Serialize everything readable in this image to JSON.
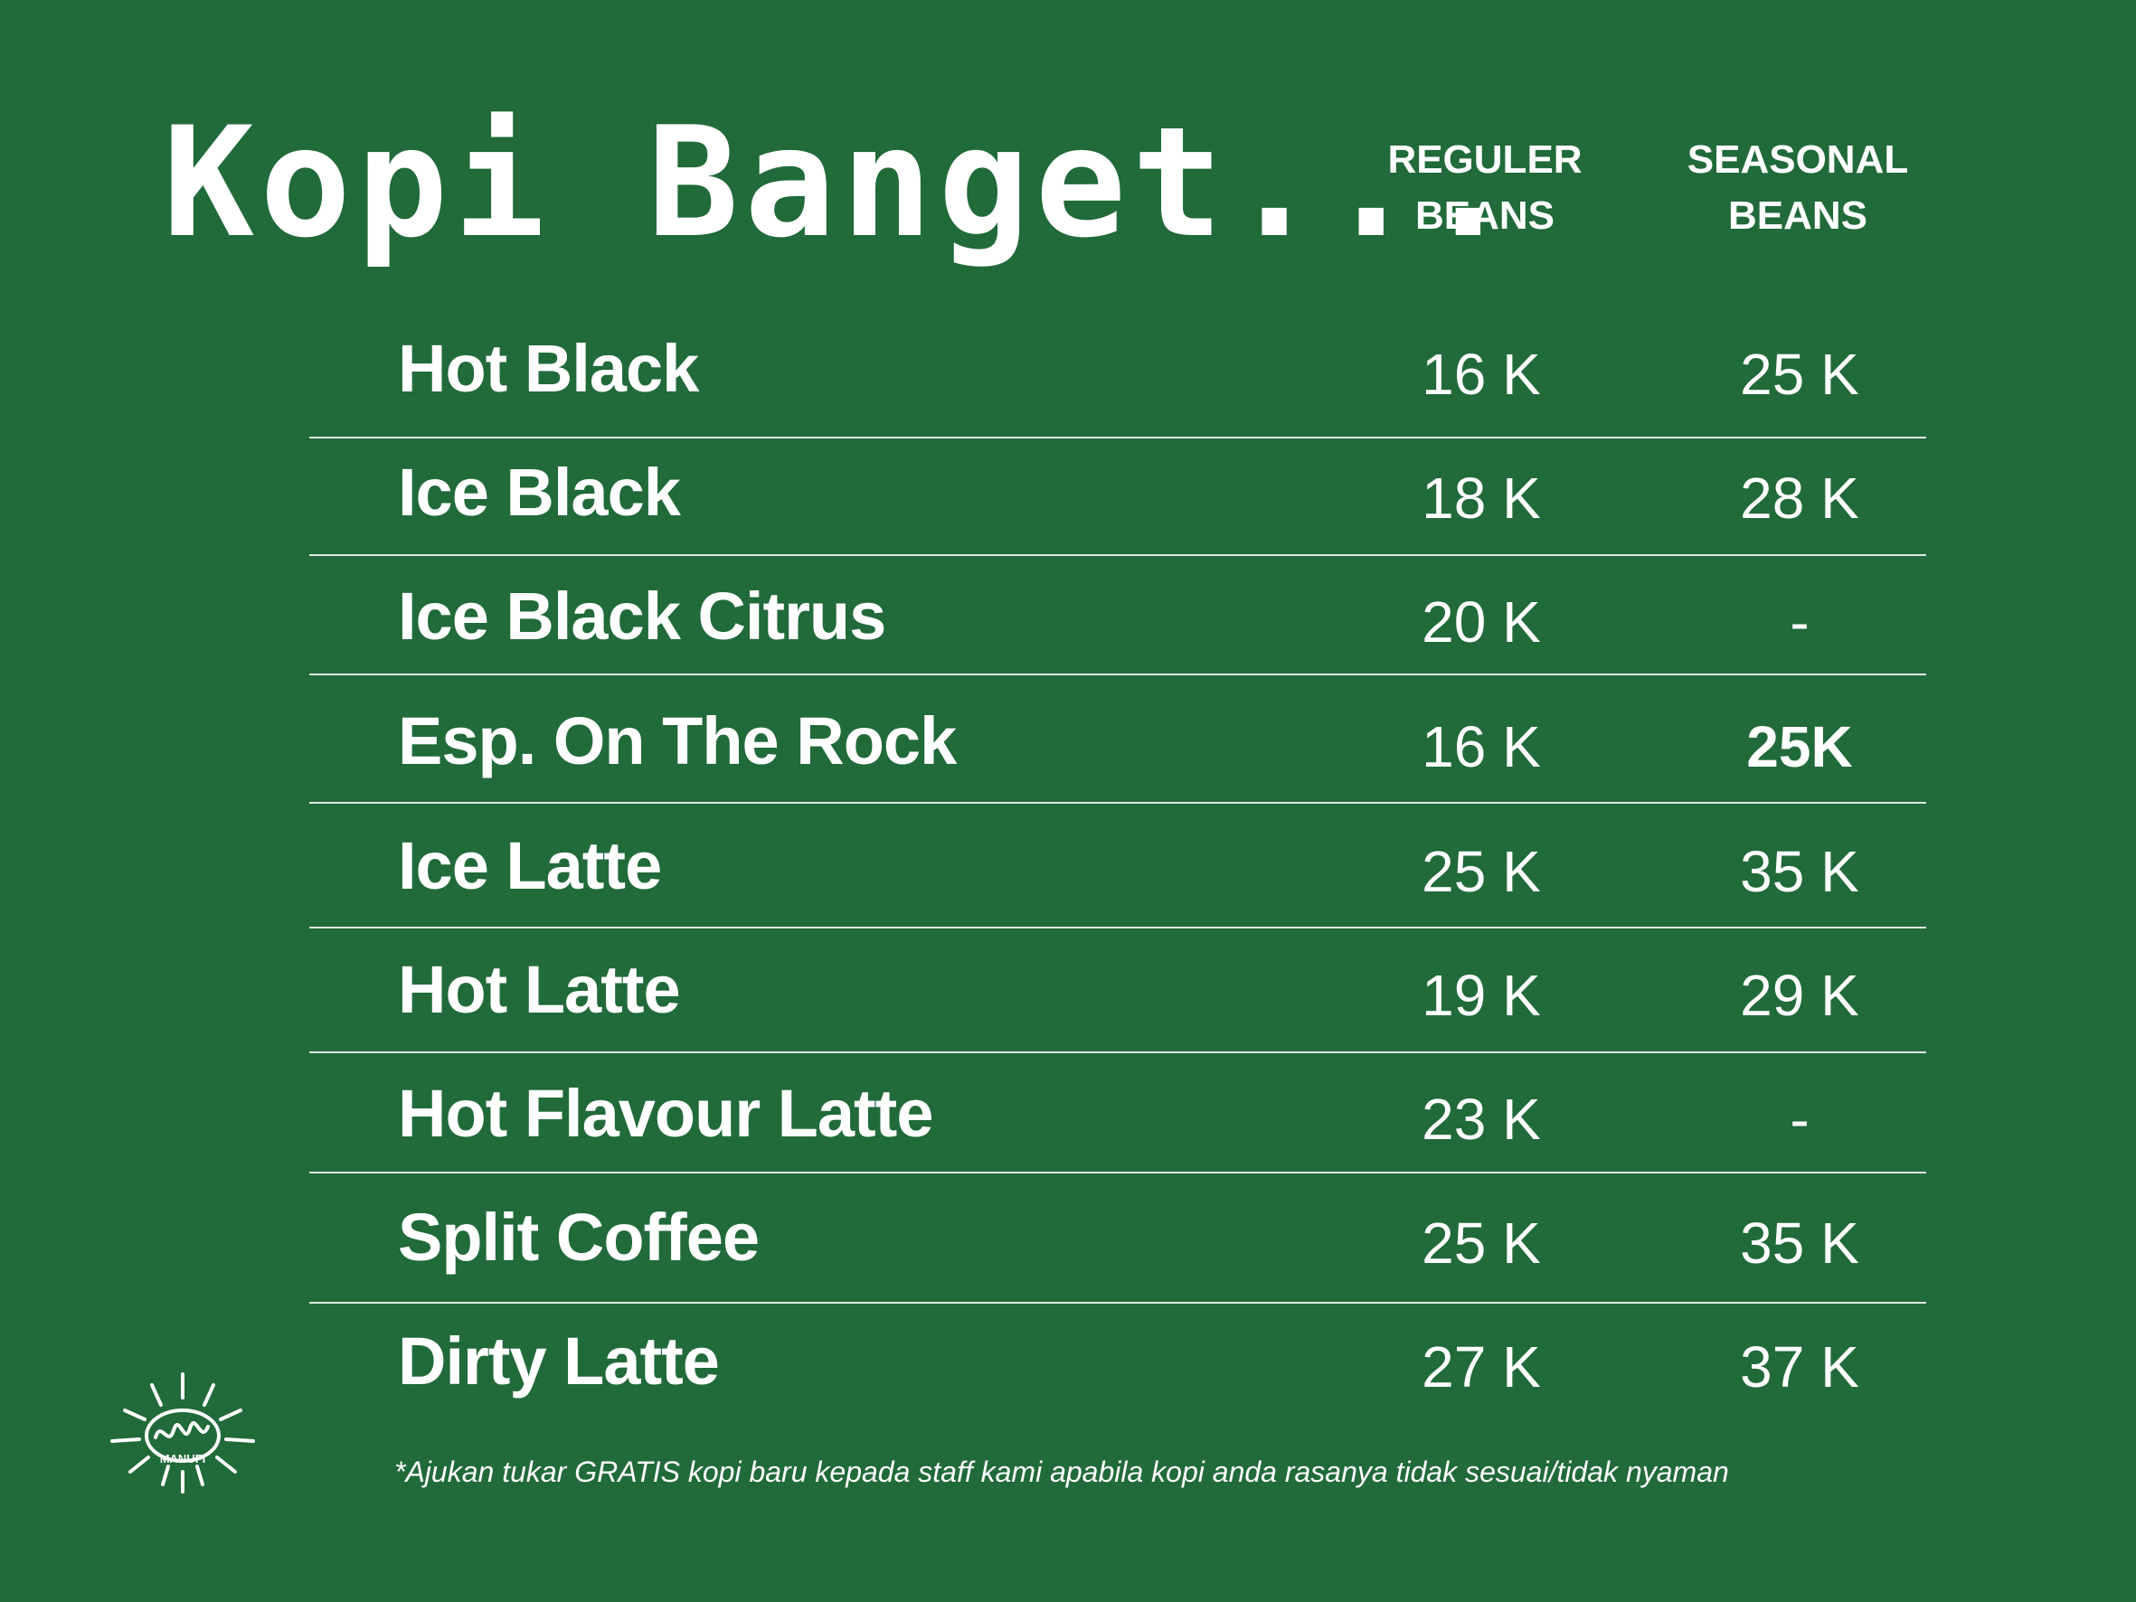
{
  "title": "Kopi Banget...",
  "columns": {
    "regular": [
      "REGULER",
      "BEANS"
    ],
    "seasonal": [
      "SEASONAL",
      "BEANS"
    ]
  },
  "items": [
    {
      "name": "Hot Black",
      "regular": "16 K",
      "seasonal": "25 K"
    },
    {
      "name": "Ice Black",
      "regular": "18 K",
      "seasonal": "28 K"
    },
    {
      "name": "Ice Black Citrus",
      "regular": "20 K",
      "seasonal": "-"
    },
    {
      "name": "Esp. On The Rock",
      "regular": "16 K",
      "seasonal": "25K"
    },
    {
      "name": "Ice Latte",
      "regular": "25 K",
      "seasonal": "35 K"
    },
    {
      "name": "Hot Latte",
      "regular": "19 K",
      "seasonal": "29 K"
    },
    {
      "name": "Hot Flavour Latte",
      "regular": "23 K",
      "seasonal": "-"
    },
    {
      "name": "Split Coffee",
      "regular": "25 K",
      "seasonal": "35 K"
    },
    {
      "name": "Dirty Latte",
      "regular": "27 K",
      "seasonal": "37 K"
    }
  ],
  "footnote": "*Ajukan tukar GRATIS kopi baru kepada staff kami apabila kopi anda rasanya tidak sesuai/tidak nyaman",
  "logo": {
    "icon": "sun-bean-logo",
    "text": "MANUFI"
  },
  "colors": {
    "background": "#216a3a",
    "text": "#ffffff"
  }
}
